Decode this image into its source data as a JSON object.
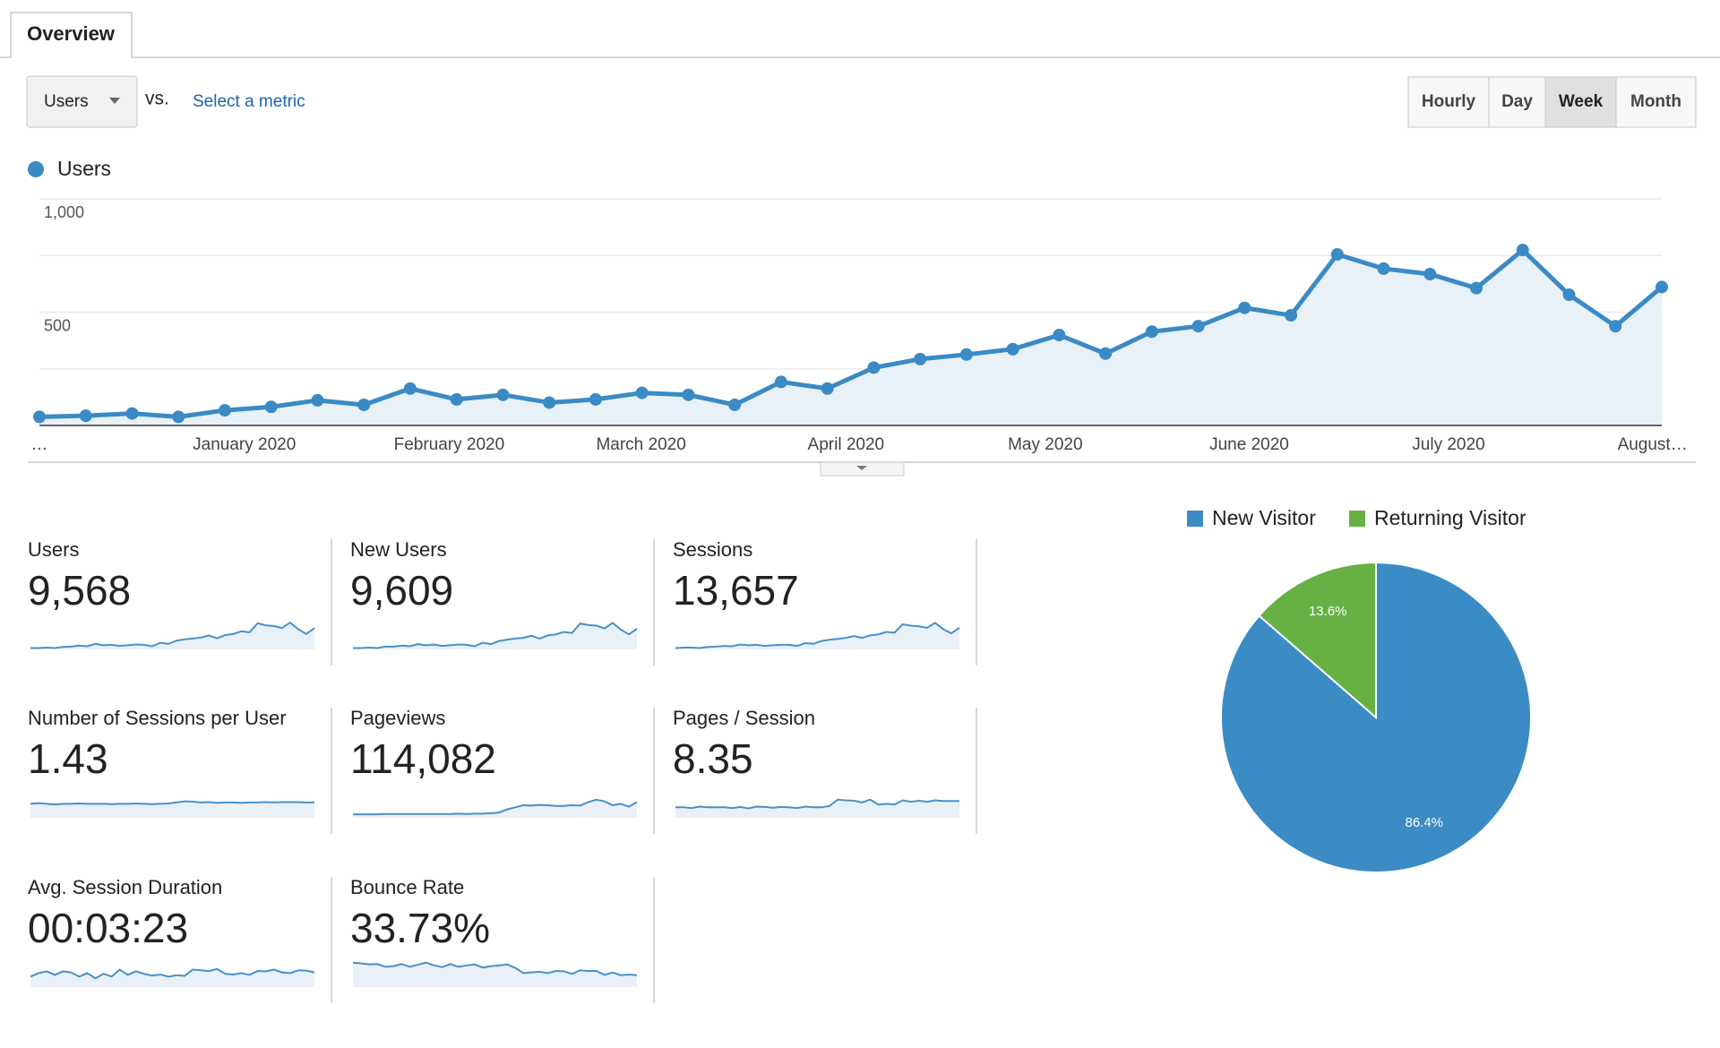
{
  "tab": "Overview",
  "controls": {
    "metric": "Users",
    "vs": "vs.",
    "select_metric": "Select a metric",
    "granularity": {
      "options": [
        "Hourly",
        "Day",
        "Week",
        "Month"
      ],
      "active": 2
    }
  },
  "chart_data": [
    {
      "type": "line",
      "legend_position": "top-left",
      "grid": true,
      "categories": [
        null,
        null,
        null,
        null,
        null,
        null,
        null,
        null,
        null,
        null,
        null,
        null,
        null,
        null,
        null,
        null,
        null,
        null,
        null,
        null,
        null,
        null,
        null,
        null,
        null,
        null,
        null,
        null,
        null,
        null,
        null,
        null,
        null,
        null,
        null,
        null
      ],
      "series": [
        {
          "name": "Users",
          "color": "#3a8ac5",
          "values": [
            38,
            43,
            53,
            38,
            67,
            82,
            111,
            91,
            163,
            115,
            135,
            101,
            115,
            144,
            135,
            91,
            192,
            163,
            255,
            293,
            313,
            337,
            399,
            317,
            414,
            438,
            519,
            486,
            755,
            692,
            668,
            606,
            774,
            577,
            438,
            611
          ]
        }
      ],
      "ylim": [
        0,
        1000
      ],
      "yticks": [
        500,
        {
          "value": 1000,
          "label": "1,000"
        }
      ],
      "minor_yticks": [
        250,
        750
      ],
      "xticks": [
        {
          "value": 0,
          "label": "…"
        },
        {
          "value": 4.42,
          "label": "January 2020"
        },
        {
          "value": 8.84,
          "label": "February 2020"
        },
        {
          "value": 12.98,
          "label": "March 2020"
        },
        {
          "value": 17.4,
          "label": "April 2020"
        },
        {
          "value": 21.7,
          "label": "May 2020"
        },
        {
          "value": 26.1,
          "label": "June 2020"
        },
        {
          "value": 30.4,
          "label": "July 2020"
        },
        {
          "value": 34.8,
          "label": "August…"
        }
      ]
    },
    {
      "type": "pie",
      "legend_position": "top",
      "categories": [
        "New Visitor",
        "Returning Visitor"
      ],
      "values": [
        86.4,
        13.6
      ],
      "value_labels": [
        "86.4%",
        "13.6%"
      ],
      "colors": [
        "#3b8bc5",
        "#67b044"
      ]
    }
  ],
  "metrics": [
    {
      "label": "Users",
      "value": "9,568",
      "sparkline": {
        "type": "line",
        "ylim": [
          0,
          100
        ],
        "values": [
          4,
          4,
          5,
          4,
          7,
          8,
          11,
          9,
          16,
          12,
          13,
          10,
          12,
          14,
          13,
          9,
          19,
          16,
          25,
          29,
          31,
          34,
          40,
          32,
          41,
          44,
          52,
          49,
          75,
          69,
          67,
          61,
          77,
          58,
          44,
          61
        ]
      }
    },
    {
      "label": "New Users",
      "value": "9,609",
      "sparkline": {
        "type": "line",
        "ylim": [
          0,
          100
        ],
        "values": [
          4,
          4,
          5,
          4,
          8,
          8,
          11,
          9,
          15,
          12,
          14,
          10,
          12,
          14,
          13,
          9,
          19,
          15,
          24,
          28,
          31,
          33,
          39,
          31,
          40,
          43,
          50,
          47,
          74,
          70,
          68,
          60,
          76,
          57,
          43,
          59
        ]
      }
    },
    {
      "label": "Sessions",
      "value": "13,657",
      "sparkline": {
        "type": "line",
        "ylim": [
          0,
          100
        ],
        "values": [
          4,
          5,
          5,
          4,
          7,
          8,
          10,
          9,
          14,
          12,
          13,
          10,
          12,
          13,
          13,
          10,
          18,
          16,
          24,
          28,
          30,
          33,
          38,
          33,
          40,
          43,
          50,
          48,
          72,
          68,
          66,
          62,
          76,
          58,
          46,
          62
        ]
      }
    },
    {
      "label": "Number of Sessions per User",
      "value": "1.43",
      "sparkline": {
        "type": "line",
        "ylim": [
          0,
          100
        ],
        "values": [
          40,
          42,
          40,
          38,
          40,
          40,
          41,
          40,
          40,
          40,
          39,
          40,
          40,
          41,
          40,
          39,
          40,
          41,
          44,
          47,
          46,
          44,
          45,
          43,
          44,
          44,
          43,
          44,
          44,
          45,
          44,
          45,
          45,
          45,
          44,
          44
        ]
      }
    },
    {
      "label": "Pageviews",
      "value": "114,082",
      "sparkline": {
        "type": "line",
        "ylim": [
          0,
          100
        ],
        "values": [
          10,
          10,
          10,
          10,
          11,
          11,
          11,
          11,
          11,
          11,
          11,
          11,
          11,
          12,
          11,
          12,
          12,
          13,
          15,
          24,
          30,
          36,
          35,
          37,
          36,
          34,
          34,
          36,
          35,
          45,
          52,
          47,
          36,
          40,
          32,
          45
        ]
      }
    },
    {
      "label": "Pages / Session",
      "value": "8.35",
      "sparkline": {
        "type": "line",
        "ylim": [
          0,
          100
        ],
        "values": [
          30,
          30,
          28,
          32,
          30,
          30,
          30,
          28,
          31,
          27,
          32,
          31,
          29,
          31,
          30,
          28,
          32,
          30,
          30,
          34,
          52,
          50,
          49,
          44,
          52,
          38,
          40,
          38,
          50,
          46,
          49,
          46,
          50,
          48,
          48,
          48
        ]
      }
    },
    {
      "label": "Avg. Session Duration",
      "value": "00:03:23",
      "sparkline": {
        "type": "line",
        "ylim": [
          0,
          100
        ],
        "values": [
          30,
          40,
          45,
          35,
          45,
          42,
          30,
          40,
          25,
          38,
          30,
          50,
          35,
          45,
          38,
          33,
          36,
          30,
          34,
          32,
          50,
          48,
          46,
          52,
          38,
          36,
          40,
          35,
          46,
          45,
          50,
          42,
          40,
          48,
          47,
          42
        ]
      }
    },
    {
      "label": "Bounce Rate",
      "value": "33.73%",
      "sparkline": {
        "type": "line",
        "ylim": [
          0,
          100
        ],
        "values": [
          70,
          68,
          65,
          66,
          58,
          60,
          66,
          58,
          64,
          70,
          62,
          57,
          66,
          58,
          62,
          65,
          56,
          60,
          62,
          65,
          55,
          40,
          42,
          44,
          40,
          46,
          45,
          38,
          48,
          46,
          46,
          35,
          42,
          34,
          36,
          34
        ]
      }
    }
  ]
}
